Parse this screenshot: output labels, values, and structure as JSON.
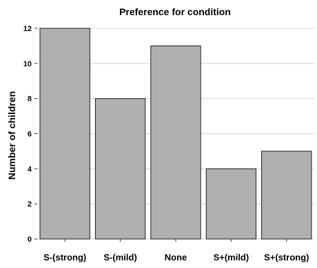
{
  "chart_data": {
    "type": "bar",
    "title": "Preference for condition",
    "xlabel": "",
    "ylabel": "Number of children",
    "categories": [
      "S-(strong)",
      "S-(mild)",
      "None",
      "S+(mild)",
      "S+(strong)"
    ],
    "values": [
      12,
      8,
      11,
      4,
      5
    ],
    "ylim": [
      0,
      12
    ],
    "yticks": [
      0,
      2,
      4,
      6,
      8,
      10,
      12
    ],
    "grid": true,
    "legend": "none",
    "bar_color": "#b0b0b0",
    "bar_edge_color": "#1a1a1a",
    "grid_color": "#d3d3d3"
  }
}
